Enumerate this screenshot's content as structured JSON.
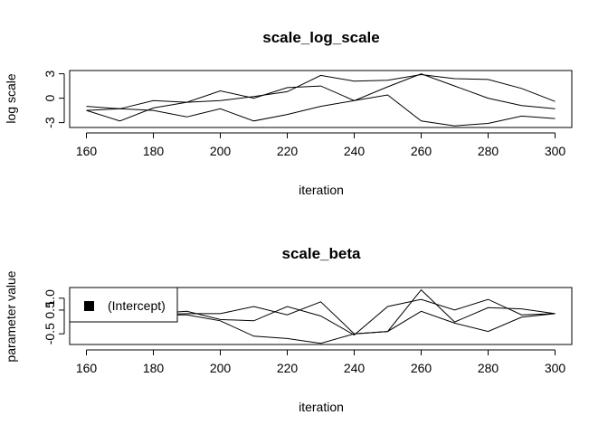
{
  "chart_data": [
    {
      "type": "line",
      "title": "scale_log_scale",
      "xlabel": "iteration",
      "ylabel": "log scale",
      "xlim": [
        155,
        305
      ],
      "ylim": [
        -3.6,
        3.4
      ],
      "x_ticks": [
        160,
        180,
        200,
        220,
        240,
        260,
        280,
        300
      ],
      "y_ticks": [
        -3,
        0,
        3
      ],
      "x": [
        160,
        170,
        180,
        190,
        200,
        210,
        220,
        230,
        240,
        250,
        260,
        270,
        280,
        290,
        300
      ],
      "series": [
        {
          "values": [
            -1.5,
            -1.3,
            -1.5,
            -2.3,
            -1.3,
            -2.8,
            -2.0,
            -1.0,
            -0.3,
            0.4,
            -2.8,
            -3.4,
            -3.1,
            -2.2,
            -2.5
          ]
        },
        {
          "values": [
            -1.0,
            -1.3,
            -0.3,
            -0.5,
            0.9,
            0.0,
            1.3,
            1.5,
            -0.3,
            1.4,
            3.0,
            1.5,
            0.0,
            -0.9,
            -1.3
          ]
        },
        {
          "values": [
            -1.5,
            -2.8,
            -1.2,
            -0.5,
            -0.3,
            0.2,
            0.8,
            2.8,
            2.1,
            2.2,
            2.9,
            2.4,
            2.3,
            1.2,
            -0.4
          ]
        }
      ]
    },
    {
      "type": "line",
      "title": "scale_beta",
      "xlabel": "iteration",
      "ylabel": "parameter value",
      "xlim": [
        155,
        305
      ],
      "ylim": [
        -0.95,
        1.45
      ],
      "x_ticks": [
        160,
        180,
        200,
        220,
        240,
        260,
        280,
        300
      ],
      "y_ticks": [
        -0.5,
        0.5,
        1.0
      ],
      "y_tick_labels": [
        "-0.5",
        "0.5",
        "1.0"
      ],
      "legend": {
        "position": "top-left",
        "entries": [
          "(Intercept)"
        ]
      },
      "x": [
        160,
        170,
        180,
        190,
        200,
        210,
        220,
        230,
        240,
        250,
        260,
        270,
        280,
        290,
        300
      ],
      "series": [
        {
          "values": [
            0.25,
            0.25,
            0.35,
            0.45,
            0.1,
            0.05,
            0.65,
            0.25,
            -0.55,
            0.65,
            0.95,
            0.5,
            0.95,
            0.3,
            0.35
          ]
        },
        {
          "values": [
            0.25,
            0.25,
            0.3,
            0.35,
            0.35,
            0.65,
            0.3,
            0.85,
            -0.5,
            -0.4,
            1.35,
            0.0,
            0.6,
            0.55,
            0.35
          ]
        },
        {
          "values": [
            0.25,
            0.25,
            0.3,
            0.3,
            0.05,
            -0.6,
            -0.7,
            -0.9,
            -0.5,
            -0.4,
            0.45,
            -0.05,
            -0.4,
            0.2,
            0.35
          ]
        }
      ]
    }
  ]
}
